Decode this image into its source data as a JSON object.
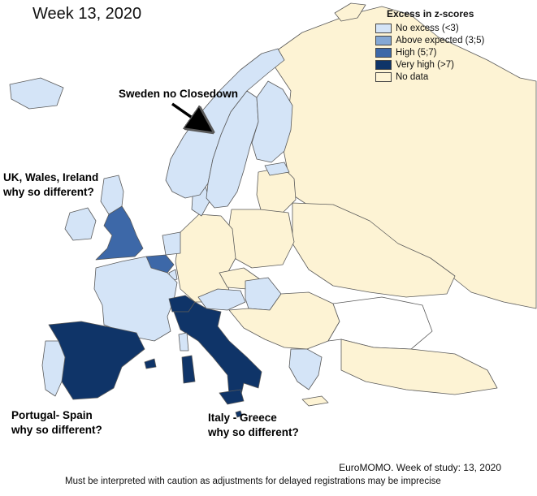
{
  "title": "Week 13, 2020",
  "legend": {
    "title": "Excess in z-scores",
    "items": [
      {
        "label": "No excess (<3)",
        "color": "#d4e4f7"
      },
      {
        "label": "Above expected (3;5)",
        "color": "#85a8d4"
      },
      {
        "label": "High (5;7)",
        "color": "#3d68a8"
      },
      {
        "label": "Very high (>7)",
        "color": "#0f3468"
      },
      {
        "label": "No data",
        "color": "#fdf3d4"
      }
    ]
  },
  "annotations": {
    "sweden": "Sweden no Closedown",
    "uk_line1": "UK, Wales, Ireland",
    "uk_line2": "why so different?",
    "iberia_line1": "Portugal- Spain",
    "iberia_line2": "why so different?",
    "italy_line1": "Italy - Greece",
    "italy_line2": "why so different?"
  },
  "footer": {
    "source": "EuroMOMO. Week of study: 13, 2020",
    "note": "Must be interpreted with caution as adjustments for delayed registrations may be imprecise"
  },
  "colors": {
    "no_excess": "#d4e4f7",
    "above_expected": "#85a8d4",
    "high": "#3d68a8",
    "very_high": "#0f3468",
    "no_data": "#fdf3d4"
  }
}
